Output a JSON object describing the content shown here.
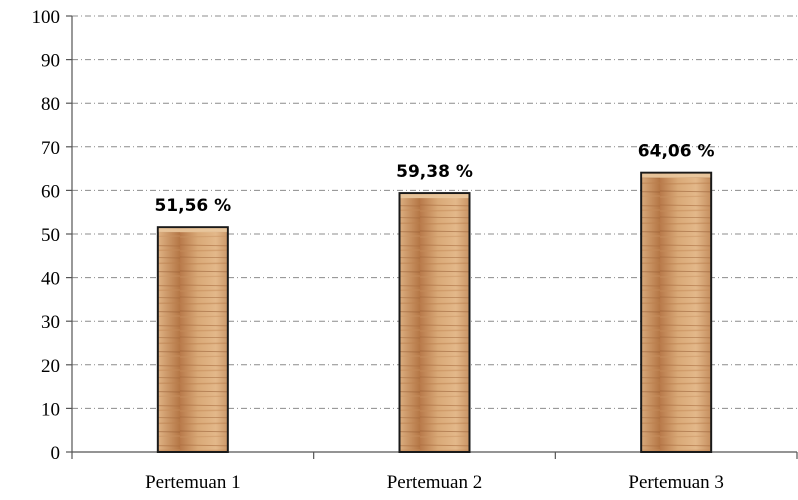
{
  "chart_data": {
    "type": "bar",
    "categories": [
      "Pertemuan 1",
      "Pertemuan 2",
      "Pertemuan 3"
    ],
    "values": [
      51.56,
      59.38,
      64.06
    ],
    "data_labels": [
      "51,56 %",
      "59,38 %",
      "64,06 %"
    ],
    "ylim": [
      0,
      100
    ],
    "yticks": [
      "0",
      "10",
      "20",
      "30",
      "40",
      "50",
      "60",
      "70",
      "80",
      "90",
      "100"
    ],
    "grid": true,
    "legend": "none",
    "colors": {
      "bar_light": "#eac9a0",
      "bar_mid": "#d5a26e",
      "bar_dark": "#a86b3c",
      "bar_stroke": "#1a1a1a",
      "grid": "#8c8c8c"
    }
  }
}
